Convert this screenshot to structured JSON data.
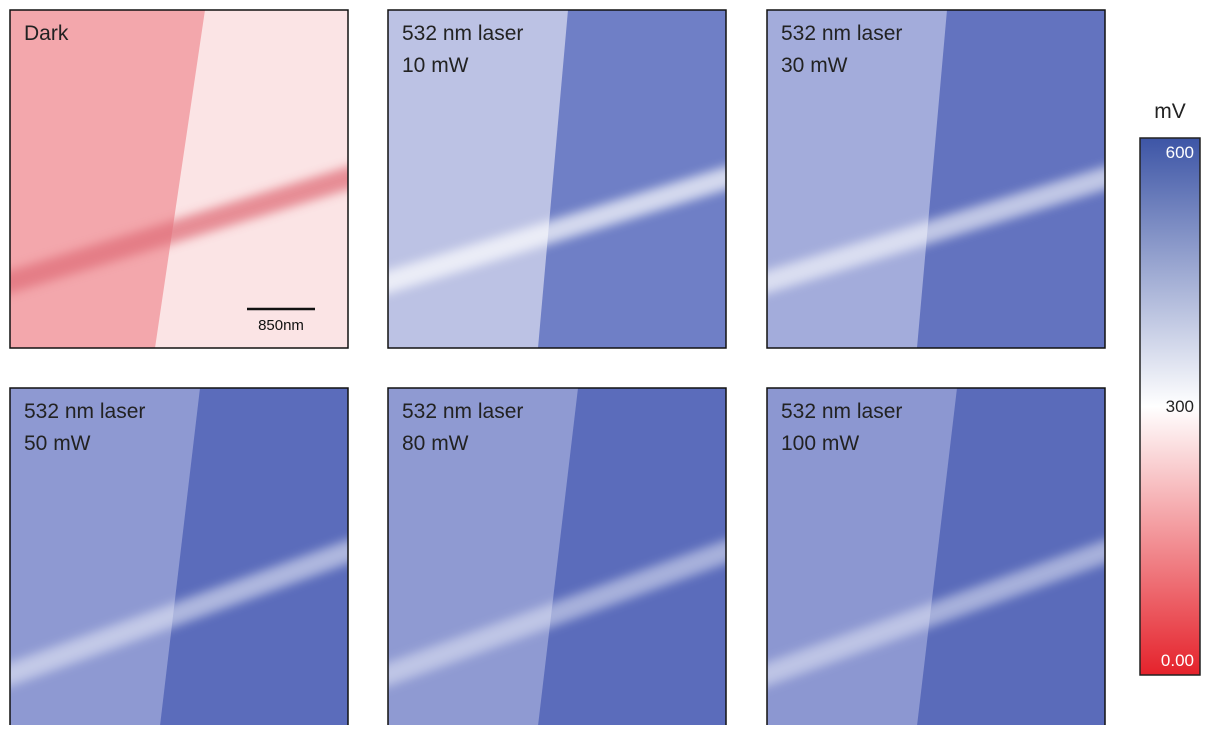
{
  "panels": [
    {
      "lines": [
        "Dark"
      ]
    },
    {
      "lines": [
        "532 nm laser",
        "10 mW"
      ]
    },
    {
      "lines": [
        "532 nm laser",
        "30 mW"
      ]
    },
    {
      "lines": [
        "532 nm laser",
        "50 mW"
      ]
    },
    {
      "lines": [
        "532 nm laser",
        "80 mW"
      ]
    },
    {
      "lines": [
        "532 nm laser",
        "100 mW"
      ]
    }
  ],
  "scale_bar": {
    "label": "850nm"
  },
  "colorbar": {
    "unit": "mV",
    "ticks": [
      "600",
      "300",
      "0.00"
    ]
  }
}
